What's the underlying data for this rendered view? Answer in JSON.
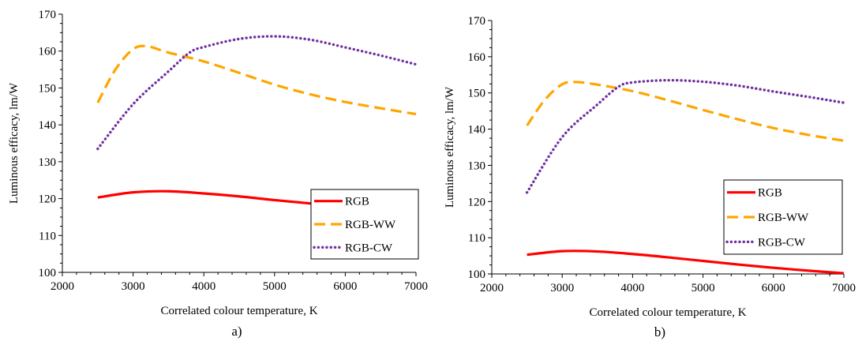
{
  "chart_data": [
    {
      "panel_label": "a)",
      "type": "line",
      "xlabel": "Correlated colour temperature, K",
      "ylabel": "Luminous efficacy, lm/W",
      "xlim": [
        2000,
        7000
      ],
      "ylim": [
        100,
        170
      ],
      "xticks": [
        2000,
        3000,
        4000,
        5000,
        6000,
        7000
      ],
      "yticks": [
        100,
        110,
        120,
        130,
        140,
        150,
        160,
        170
      ],
      "grid": false,
      "legend_position": "right",
      "series": [
        {
          "name": "RGB",
          "color": "#ff0000",
          "dash": "solid",
          "x": [
            2500,
            3000,
            3500,
            4000,
            4500,
            5000,
            5500,
            6000,
            6500,
            7000
          ],
          "y": [
            120.3,
            121.7,
            122.0,
            121.4,
            120.6,
            119.6,
            118.7,
            117.8,
            116.9,
            115.9
          ]
        },
        {
          "name": "RGB-WW",
          "color": "#ffa500",
          "dash": "dashed",
          "x": [
            2500,
            2750,
            3000,
            3200,
            3500,
            4000,
            4500,
            5000,
            5500,
            6000,
            6500,
            7000
          ],
          "y": [
            146,
            155,
            160.5,
            161.3,
            159.6,
            157.2,
            154.1,
            150.9,
            148.3,
            146.2,
            144.5,
            142.9
          ]
        },
        {
          "name": "RGB-CW",
          "color": "#7030a0",
          "dash": "dotted",
          "x": [
            2500,
            3000,
            3500,
            3800,
            4000,
            4500,
            5000,
            5500,
            6000,
            6500,
            7000
          ],
          "y": [
            133.5,
            145.6,
            154.5,
            159.6,
            161.1,
            163.3,
            164,
            163.1,
            161,
            158.8,
            156.4
          ]
        }
      ]
    },
    {
      "panel_label": "b)",
      "type": "line",
      "xlabel": "Correlated colour temperature, K",
      "ylabel": "Luminous efficacy, lm/W",
      "xlim": [
        2000,
        7000
      ],
      "ylim": [
        100,
        170
      ],
      "xticks": [
        2000,
        3000,
        4000,
        5000,
        6000,
        7000
      ],
      "yticks": [
        100,
        110,
        120,
        130,
        140,
        150,
        160,
        170
      ],
      "grid": false,
      "legend_position": "right",
      "series": [
        {
          "name": "RGB",
          "color": "#ff0000",
          "dash": "solid",
          "x": [
            2500,
            3000,
            3500,
            4000,
            4500,
            5000,
            5500,
            6000,
            6500,
            7000
          ],
          "y": [
            105.3,
            106.3,
            106.2,
            105.5,
            104.6,
            103.6,
            102.6,
            101.7,
            100.9,
            100.2
          ]
        },
        {
          "name": "RGB-WW",
          "color": "#ffa500",
          "dash": "dashed",
          "x": [
            2500,
            2750,
            3000,
            3200,
            3500,
            4000,
            4500,
            5000,
            5500,
            6000,
            6500,
            7000
          ],
          "y": [
            141,
            148,
            152.4,
            153,
            152.3,
            150.5,
            148,
            145.3,
            142.7,
            140.3,
            138.4,
            136.8
          ]
        },
        {
          "name": "RGB-CW",
          "color": "#7030a0",
          "dash": "dotted",
          "x": [
            2500,
            3000,
            3500,
            3800,
            4000,
            4500,
            5000,
            5500,
            6000,
            6500,
            7000
          ],
          "y": [
            122.5,
            137.8,
            146.8,
            151.7,
            152.9,
            153.5,
            153.1,
            152,
            150.4,
            148.9,
            147.3
          ]
        }
      ]
    }
  ]
}
